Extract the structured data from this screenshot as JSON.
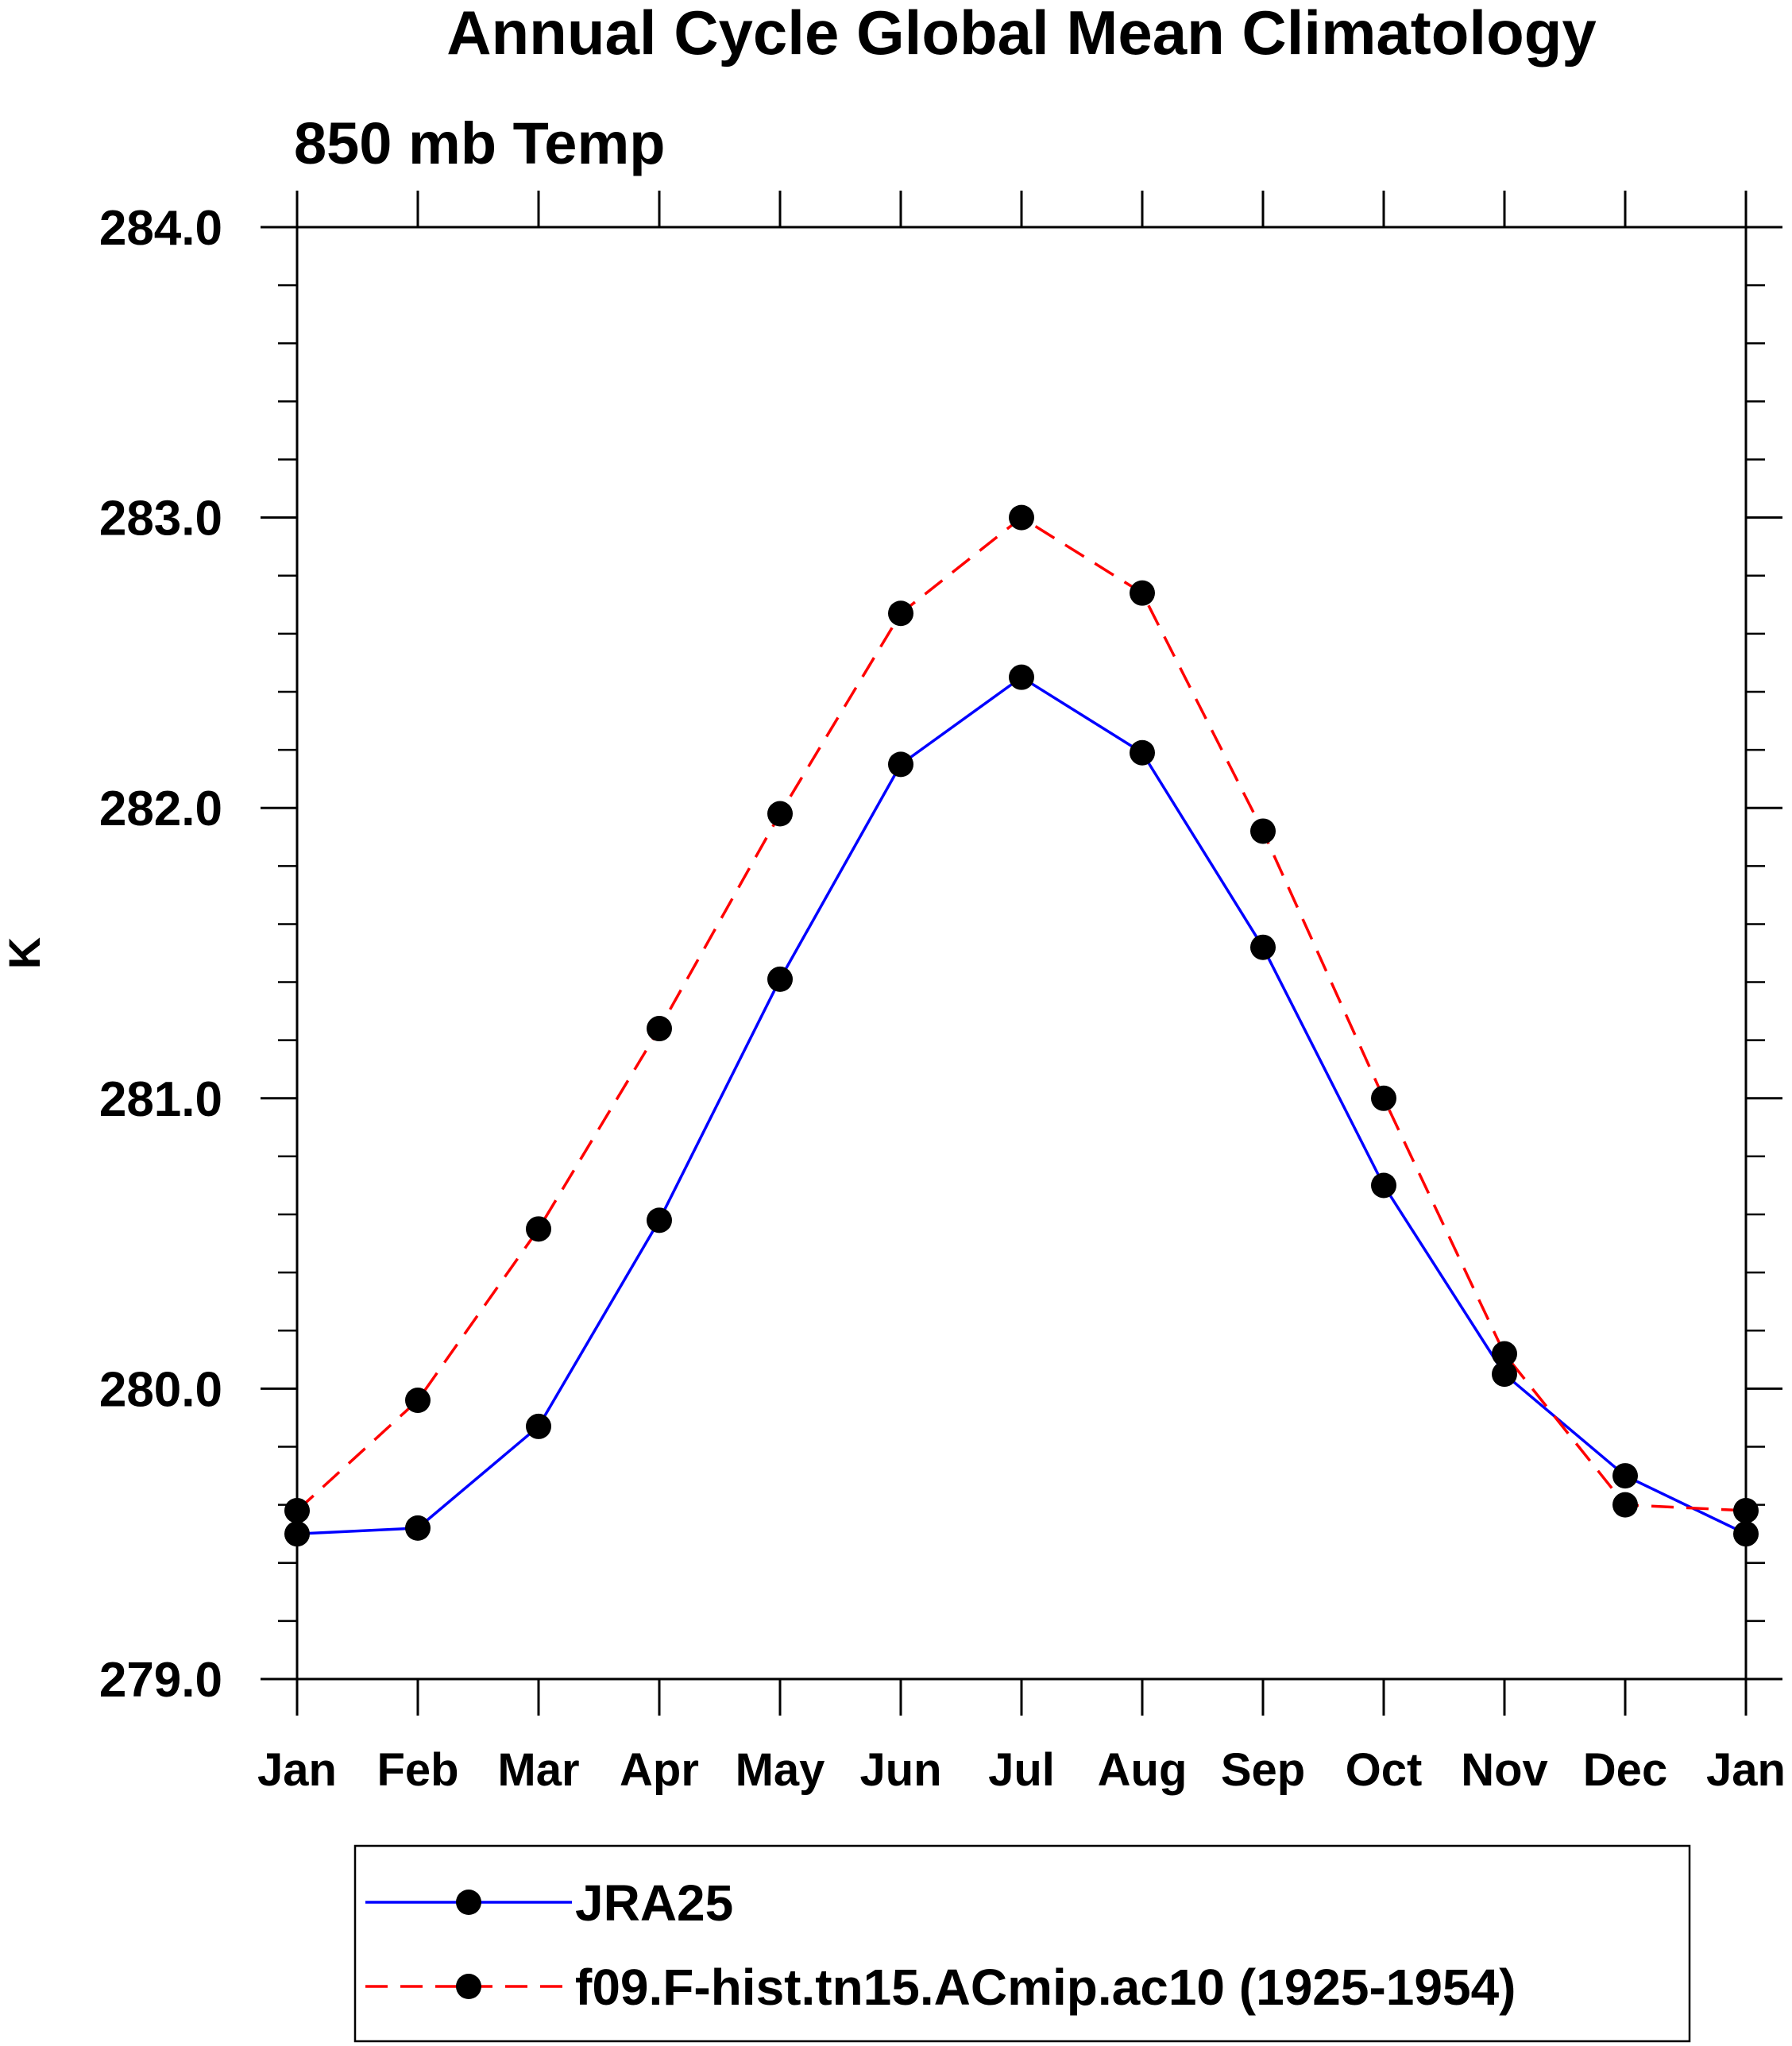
{
  "chart_data": {
    "type": "line",
    "title": "Annual Cycle Global Mean Climatology",
    "subtitle": "850 mb Temp",
    "ylabel": "K",
    "xlabel": "",
    "categories": [
      "Jan",
      "Feb",
      "Mar",
      "Apr",
      "May",
      "Jun",
      "Jul",
      "Aug",
      "Sep",
      "Oct",
      "Nov",
      "Dec",
      "Jan"
    ],
    "ylim": [
      279.0,
      284.0
    ],
    "yticks": [
      "279.0",
      "280.0",
      "281.0",
      "282.0",
      "283.0",
      "284.0"
    ],
    "grid": false,
    "legend_position": "bottom",
    "series": [
      {
        "name": "JRA25",
        "color": "#0000ff",
        "dash": "solid",
        "values": [
          279.5,
          279.52,
          279.87,
          280.58,
          281.41,
          282.15,
          282.45,
          282.19,
          281.52,
          280.7,
          280.05,
          279.7,
          279.5
        ]
      },
      {
        "name": "f09.F-hist.tn15.ACmip.ac10 (1925-1954)",
        "color": "#ff0000",
        "dash": "dashed",
        "values": [
          279.58,
          279.96,
          280.55,
          281.24,
          281.98,
          282.67,
          283.0,
          282.74,
          281.92,
          281.0,
          280.12,
          279.6,
          279.58
        ]
      }
    ]
  }
}
